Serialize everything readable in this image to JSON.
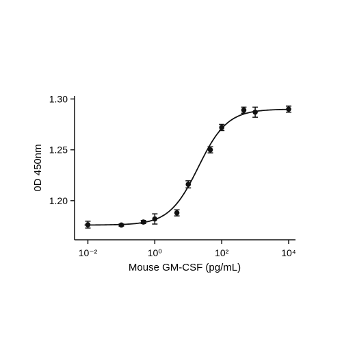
{
  "chart_data": {
    "type": "scatter",
    "x_label": "Mouse GM-CSF (pg/mL)",
    "y_label": "0D 450nm",
    "log_x": true,
    "color": "#111111",
    "x": [
      0.01,
      0.1,
      0.457,
      1,
      4.57,
      10,
      45.7,
      100,
      457,
      1000,
      10000
    ],
    "values": [
      1.1764,
      1.176,
      1.179,
      1.182,
      1.188,
      1.216,
      1.25,
      1.272,
      1.289,
      1.287,
      1.29
    ],
    "errors": [
      0.0034,
      0.001,
      0.0015,
      0.005,
      0.003,
      0.0035,
      0.003,
      0.003,
      0.003,
      0.005,
      0.003
    ],
    "fit": {
      "bottom": 1.176,
      "top": 1.29,
      "ec50": 20,
      "hill": 1
    },
    "xlim": [
      0.004,
      16000
    ],
    "ylim": [
      1.1615,
      1.303
    ],
    "xticks": [
      {
        "value": 0.01,
        "label": "10⁻²"
      },
      {
        "value": 1,
        "label": "10⁰"
      },
      {
        "value": 100,
        "label": "10²"
      },
      {
        "value": 10000,
        "label": "10⁴"
      }
    ],
    "yticks": [
      {
        "value": 1.2,
        "label": "1.20"
      },
      {
        "value": 1.25,
        "label": "1.25"
      },
      {
        "value": 1.3,
        "label": "1.30"
      }
    ]
  }
}
